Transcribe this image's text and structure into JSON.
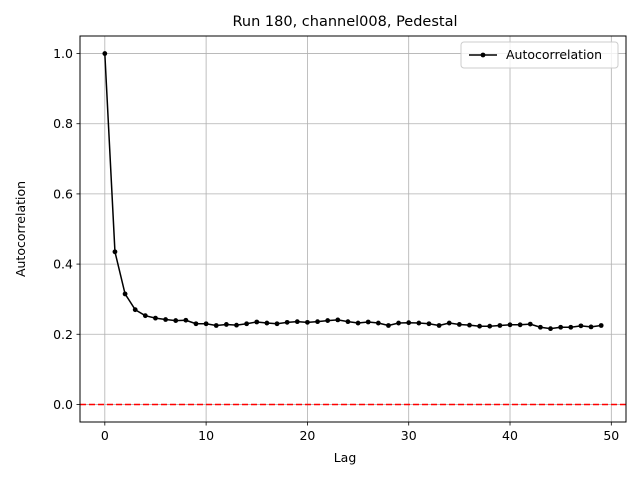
{
  "chart_data": {
    "type": "line",
    "title": "Run 180, channel008, Pedestal",
    "xlabel": "Lag",
    "ylabel": "Autocorrelation",
    "xlim": [
      -2.45,
      51.45
    ],
    "ylim": [
      -0.05,
      1.05
    ],
    "xticks": [
      0,
      10,
      20,
      30,
      40,
      50
    ],
    "yticks": [
      0.0,
      0.2,
      0.4,
      0.6,
      0.8,
      1.0
    ],
    "xtick_labels": [
      "0",
      "10",
      "20",
      "30",
      "40",
      "50"
    ],
    "ytick_labels": [
      "0.0",
      "0.2",
      "0.4",
      "0.6",
      "0.8",
      "1.0"
    ],
    "grid": true,
    "legend": {
      "position": "top-right",
      "entries": [
        "Autocorrelation"
      ]
    },
    "series": [
      {
        "name": "Autocorrelation",
        "color": "#000000",
        "marker": "circle",
        "x": [
          0,
          1,
          2,
          3,
          4,
          5,
          6,
          7,
          8,
          9,
          10,
          11,
          12,
          13,
          14,
          15,
          16,
          17,
          18,
          19,
          20,
          21,
          22,
          23,
          24,
          25,
          26,
          27,
          28,
          29,
          30,
          31,
          32,
          33,
          34,
          35,
          36,
          37,
          38,
          39,
          40,
          41,
          42,
          43,
          44,
          45,
          46,
          47,
          48,
          49
        ],
        "y": [
          1.0,
          0.435,
          0.315,
          0.27,
          0.253,
          0.246,
          0.242,
          0.239,
          0.24,
          0.23,
          0.23,
          0.225,
          0.228,
          0.226,
          0.23,
          0.235,
          0.232,
          0.23,
          0.234,
          0.236,
          0.234,
          0.236,
          0.239,
          0.241,
          0.236,
          0.232,
          0.235,
          0.232,
          0.225,
          0.232,
          0.233,
          0.232,
          0.23,
          0.225,
          0.232,
          0.228,
          0.226,
          0.223,
          0.223,
          0.225,
          0.227,
          0.227,
          0.229,
          0.22,
          0.216,
          0.22,
          0.22,
          0.224,
          0.221,
          0.225
        ]
      }
    ],
    "reference_lines": [
      {
        "orientation": "horizontal",
        "value": 0.0,
        "color": "#ff0000",
        "style": "dashed"
      }
    ]
  }
}
